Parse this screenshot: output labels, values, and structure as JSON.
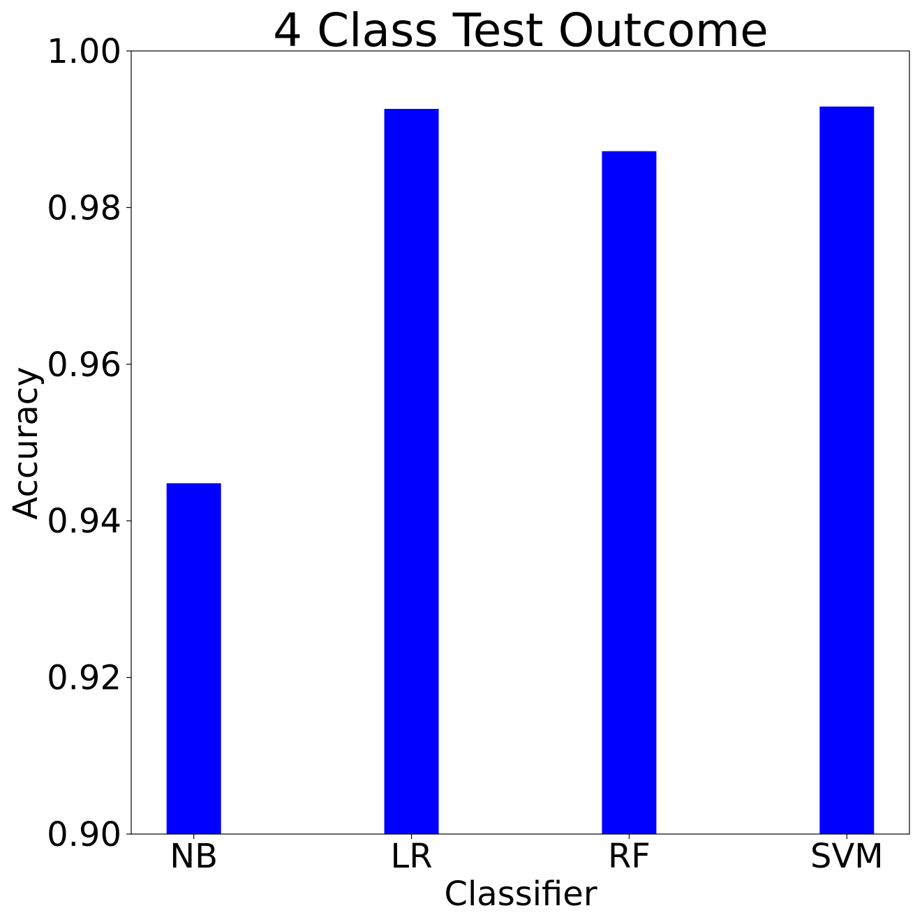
{
  "chart_data": {
    "type": "bar",
    "title": "4 Class Test Outcome",
    "xlabel": "Classifier",
    "ylabel": "Accuracy",
    "categories": [
      "NB",
      "LR",
      "RF",
      "SVM"
    ],
    "values": [
      0.9448,
      0.9926,
      0.9872,
      0.9929
    ],
    "ylim": [
      0.9,
      1.0
    ],
    "yticks": [
      "0.90",
      "0.92",
      "0.94",
      "0.96",
      "0.98",
      "1.00"
    ],
    "bar_color": "#0000ff",
    "grid": false,
    "legend": "none"
  }
}
